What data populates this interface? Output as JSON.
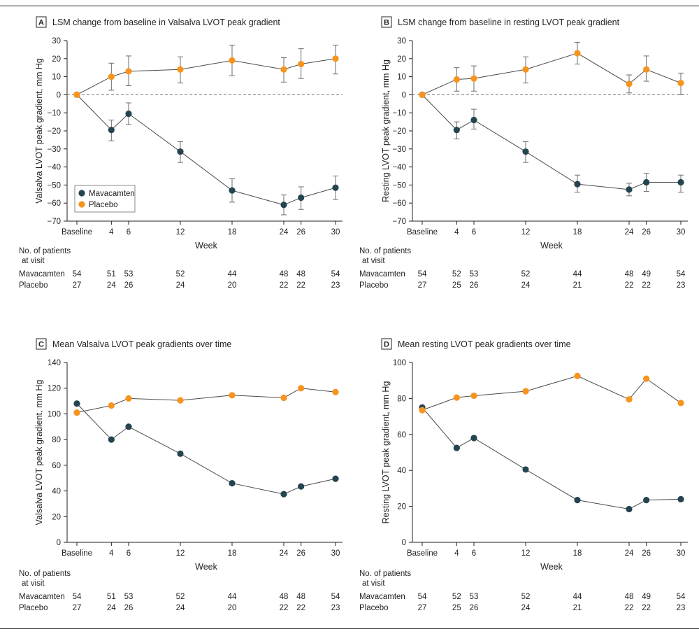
{
  "colors": {
    "mavacamten": "#24444f",
    "placebo": "#f7941d",
    "text": "#231f20"
  },
  "chart_data": [
    {
      "id": "A",
      "type": "line",
      "letter": "A",
      "title": "LSM change from baseline in Valsalva LVOT peak gradient",
      "xlabel": "Week",
      "ylabel": "Valsalva LVOT peak gradient, mm Hg",
      "ylim": [
        -70,
        30
      ],
      "yticks": [
        30,
        20,
        10,
        0,
        -10,
        -20,
        -30,
        -40,
        -50,
        -60,
        -70
      ],
      "ytick_labels": [
        "30",
        "20",
        "10",
        "0",
        "−10",
        "−20",
        "−30",
        "−40",
        "−50",
        "−60",
        "−70"
      ],
      "x": [
        0,
        4,
        6,
        12,
        18,
        24,
        26,
        30
      ],
      "xtick_labels": [
        "Baseline",
        "4",
        "6",
        "12",
        "18",
        "24",
        "26",
        "30"
      ],
      "zero_line": true,
      "legend": {
        "position": "lower-left",
        "entries": [
          "Mavacamten",
          "Placebo"
        ]
      },
      "series": [
        {
          "name": "Mavacamten",
          "color_key": "mavacamten",
          "values": [
            0,
            -19.5,
            -10.5,
            -31.5,
            -53,
            -61,
            -57,
            -51.5
          ],
          "err": [
            [
              null,
              null
            ],
            [
              -25.5,
              -14
            ],
            [
              -16.5,
              -4.5
            ],
            [
              -37.5,
              -26
            ],
            [
              -59.5,
              -46.5
            ],
            [
              -66.5,
              -55.5
            ],
            [
              -63.5,
              -51
            ],
            [
              -58,
              -45
            ]
          ]
        },
        {
          "name": "Placebo",
          "color_key": "placebo",
          "values": [
            0,
            10,
            13,
            14,
            19,
            14,
            17,
            20
          ],
          "err": [
            [
              null,
              null
            ],
            [
              2.5,
              17.5
            ],
            [
              5,
              21.5
            ],
            [
              6.5,
              21
            ],
            [
              10.5,
              27.5
            ],
            [
              7,
              20.5
            ],
            [
              9,
              25.5
            ],
            [
              11.5,
              27.5
            ]
          ]
        }
      ],
      "table": {
        "header": [
          "No. of patients",
          "at visit"
        ],
        "rows": [
          {
            "label": "Mavacamten",
            "values": [
              "54",
              "51",
              "53",
              "52",
              "44",
              "48",
              "48",
              "54"
            ]
          },
          {
            "label": "Placebo",
            "values": [
              "27",
              "24",
              "26",
              "24",
              "20",
              "22",
              "22",
              "23"
            ]
          }
        ]
      }
    },
    {
      "id": "B",
      "type": "line",
      "letter": "B",
      "title": "LSM change from baseline in resting LVOT peak gradient",
      "xlabel": "Week",
      "ylabel": "Resting LVOT peak gradient, mm Hg",
      "ylim": [
        -70,
        30
      ],
      "yticks": [
        30,
        20,
        10,
        0,
        -10,
        -20,
        -30,
        -40,
        -50,
        -60,
        -70
      ],
      "ytick_labels": [
        "30",
        "20",
        "10",
        "0",
        "−10",
        "−20",
        "−30",
        "−40",
        "−50",
        "−60",
        "−70"
      ],
      "x": [
        0,
        4,
        6,
        12,
        18,
        24,
        26,
        30
      ],
      "xtick_labels": [
        "Baseline",
        "4",
        "6",
        "12",
        "18",
        "24",
        "26",
        "30"
      ],
      "zero_line": true,
      "series": [
        {
          "name": "Mavacamten",
          "color_key": "mavacamten",
          "values": [
            0,
            -19.5,
            -14,
            -31.5,
            -49.5,
            -52.5,
            -48.5,
            -48.5
          ],
          "err": [
            [
              null,
              null
            ],
            [
              -24.5,
              -15
            ],
            [
              -19,
              -8
            ],
            [
              -37.5,
              -26
            ],
            [
              -54,
              -44.5
            ],
            [
              -56,
              -49
            ],
            [
              -53.5,
              -43.5
            ],
            [
              -54,
              -44.5
            ]
          ]
        },
        {
          "name": "Placebo",
          "color_key": "placebo",
          "values": [
            0,
            8.5,
            9,
            14,
            23,
            6,
            14,
            6.5
          ],
          "err": [
            [
              null,
              null
            ],
            [
              2,
              15
            ],
            [
              2,
              16
            ],
            [
              6.5,
              21
            ],
            [
              17,
              29
            ],
            [
              1,
              11
            ],
            [
              7.5,
              21.5
            ],
            [
              0,
              12
            ]
          ]
        }
      ],
      "table": {
        "header": [
          "No. of patients",
          "at visit"
        ],
        "rows": [
          {
            "label": "Mavacamten",
            "values": [
              "54",
              "52",
              "53",
              "52",
              "44",
              "48",
              "49",
              "54"
            ]
          },
          {
            "label": "Placebo",
            "values": [
              "27",
              "25",
              "26",
              "24",
              "21",
              "22",
              "22",
              "23"
            ]
          }
        ]
      }
    },
    {
      "id": "C",
      "type": "line",
      "letter": "C",
      "title": "Mean Valsalva LVOT peak gradients over time",
      "xlabel": "Week",
      "ylabel": "Valsalva LVOT peak gradient, mm Hg",
      "ylim": [
        0,
        140
      ],
      "yticks": [
        140,
        120,
        100,
        80,
        60,
        40,
        20,
        0
      ],
      "ytick_labels": [
        "140",
        "120",
        "100",
        "80",
        "60",
        "40",
        "20",
        "0"
      ],
      "x": [
        0,
        4,
        6,
        12,
        18,
        24,
        26,
        30
      ],
      "xtick_labels": [
        "Baseline",
        "4",
        "6",
        "12",
        "18",
        "24",
        "26",
        "30"
      ],
      "zero_line": false,
      "series": [
        {
          "name": "Mavacamten",
          "color_key": "mavacamten",
          "values": [
            108,
            80,
            90,
            69,
            46,
            37.5,
            43.5,
            49.5
          ]
        },
        {
          "name": "Placebo",
          "color_key": "placebo",
          "values": [
            101,
            106.5,
            112,
            110.5,
            114.5,
            112.5,
            120,
            117
          ]
        }
      ],
      "table": {
        "header": [
          "No. of patients",
          "at visit"
        ],
        "rows": [
          {
            "label": "Mavacamten",
            "values": [
              "54",
              "51",
              "53",
              "52",
              "44",
              "48",
              "48",
              "54"
            ]
          },
          {
            "label": "Placebo",
            "values": [
              "27",
              "24",
              "26",
              "24",
              "20",
              "22",
              "22",
              "23"
            ]
          }
        ]
      }
    },
    {
      "id": "D",
      "type": "line",
      "letter": "D",
      "title": "Mean resting LVOT peak gradients over time",
      "xlabel": "Week",
      "ylabel": "Resting LVOT peak gradient, mm Hg",
      "ylim": [
        0,
        100
      ],
      "yticks": [
        100,
        80,
        60,
        40,
        20,
        0
      ],
      "ytick_labels": [
        "100",
        "80",
        "60",
        "40",
        "20",
        "0"
      ],
      "x": [
        0,
        4,
        6,
        12,
        18,
        24,
        26,
        30
      ],
      "xtick_labels": [
        "Baseline",
        "4",
        "6",
        "12",
        "18",
        "24",
        "26",
        "30"
      ],
      "zero_line": false,
      "series": [
        {
          "name": "Mavacamten",
          "color_key": "mavacamten",
          "values": [
            75,
            52.5,
            58,
            40.5,
            23.5,
            18.5,
            23.5,
            24
          ]
        },
        {
          "name": "Placebo",
          "color_key": "placebo",
          "values": [
            73.5,
            80.5,
            81.5,
            84,
            92.5,
            79.5,
            91,
            77.5
          ]
        }
      ],
      "table": {
        "header": [
          "No. of patients",
          "at visit"
        ],
        "rows": [
          {
            "label": "Mavacamten",
            "values": [
              "54",
              "52",
              "53",
              "52",
              "44",
              "48",
              "49",
              "54"
            ]
          },
          {
            "label": "Placebo",
            "values": [
              "27",
              "25",
              "26",
              "24",
              "21",
              "22",
              "22",
              "23"
            ]
          }
        ]
      }
    }
  ]
}
